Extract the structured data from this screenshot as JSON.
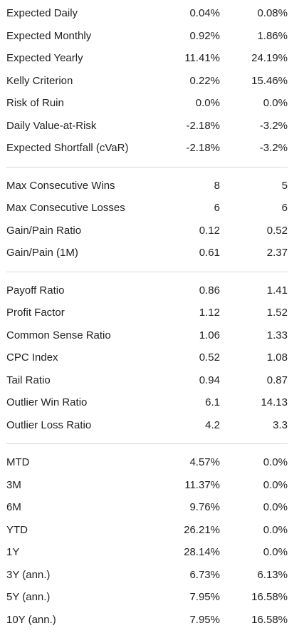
{
  "sections": [
    {
      "rows": [
        {
          "label": "Expected Daily",
          "v1": "0.04%",
          "v2": "0.08%"
        },
        {
          "label": "Expected Monthly",
          "v1": "0.92%",
          "v2": "1.86%"
        },
        {
          "label": "Expected Yearly",
          "v1": "11.41%",
          "v2": "24.19%"
        },
        {
          "label": "Kelly Criterion",
          "v1": "0.22%",
          "v2": "15.46%"
        },
        {
          "label": "Risk of Ruin",
          "v1": "0.0%",
          "v2": "0.0%"
        },
        {
          "label": "Daily Value-at-Risk",
          "v1": "-2.18%",
          "v2": "-3.2%"
        },
        {
          "label": "Expected Shortfall (cVaR)",
          "v1": "-2.18%",
          "v2": "-3.2%"
        }
      ]
    },
    {
      "rows": [
        {
          "label": "Max Consecutive Wins",
          "v1": "8",
          "v2": "5"
        },
        {
          "label": "Max Consecutive Losses",
          "v1": "6",
          "v2": "6"
        },
        {
          "label": "Gain/Pain Ratio",
          "v1": "0.12",
          "v2": "0.52"
        },
        {
          "label": "Gain/Pain (1M)",
          "v1": "0.61",
          "v2": "2.37"
        }
      ]
    },
    {
      "rows": [
        {
          "label": "Payoff Ratio",
          "v1": "0.86",
          "v2": "1.41"
        },
        {
          "label": "Profit Factor",
          "v1": "1.12",
          "v2": "1.52"
        },
        {
          "label": "Common Sense Ratio",
          "v1": "1.06",
          "v2": "1.33"
        },
        {
          "label": "CPC Index",
          "v1": "0.52",
          "v2": "1.08"
        },
        {
          "label": "Tail Ratio",
          "v1": "0.94",
          "v2": "0.87"
        },
        {
          "label": "Outlier Win Ratio",
          "v1": "6.1",
          "v2": "14.13"
        },
        {
          "label": "Outlier Loss Ratio",
          "v1": "4.2",
          "v2": "3.3"
        }
      ]
    },
    {
      "rows": [
        {
          "label": "MTD",
          "v1": "4.57%",
          "v2": "0.0%"
        },
        {
          "label": "3M",
          "v1": "11.37%",
          "v2": "0.0%"
        },
        {
          "label": "6M",
          "v1": "9.76%",
          "v2": "0.0%"
        },
        {
          "label": "YTD",
          "v1": "26.21%",
          "v2": "0.0%"
        },
        {
          "label": "1Y",
          "v1": "28.14%",
          "v2": "0.0%"
        },
        {
          "label": "3Y (ann.)",
          "v1": "6.73%",
          "v2": "6.13%"
        },
        {
          "label": "5Y (ann.)",
          "v1": "7.95%",
          "v2": "16.58%"
        },
        {
          "label": "10Y (ann.)",
          "v1": "7.95%",
          "v2": "16.58%"
        }
      ]
    }
  ]
}
